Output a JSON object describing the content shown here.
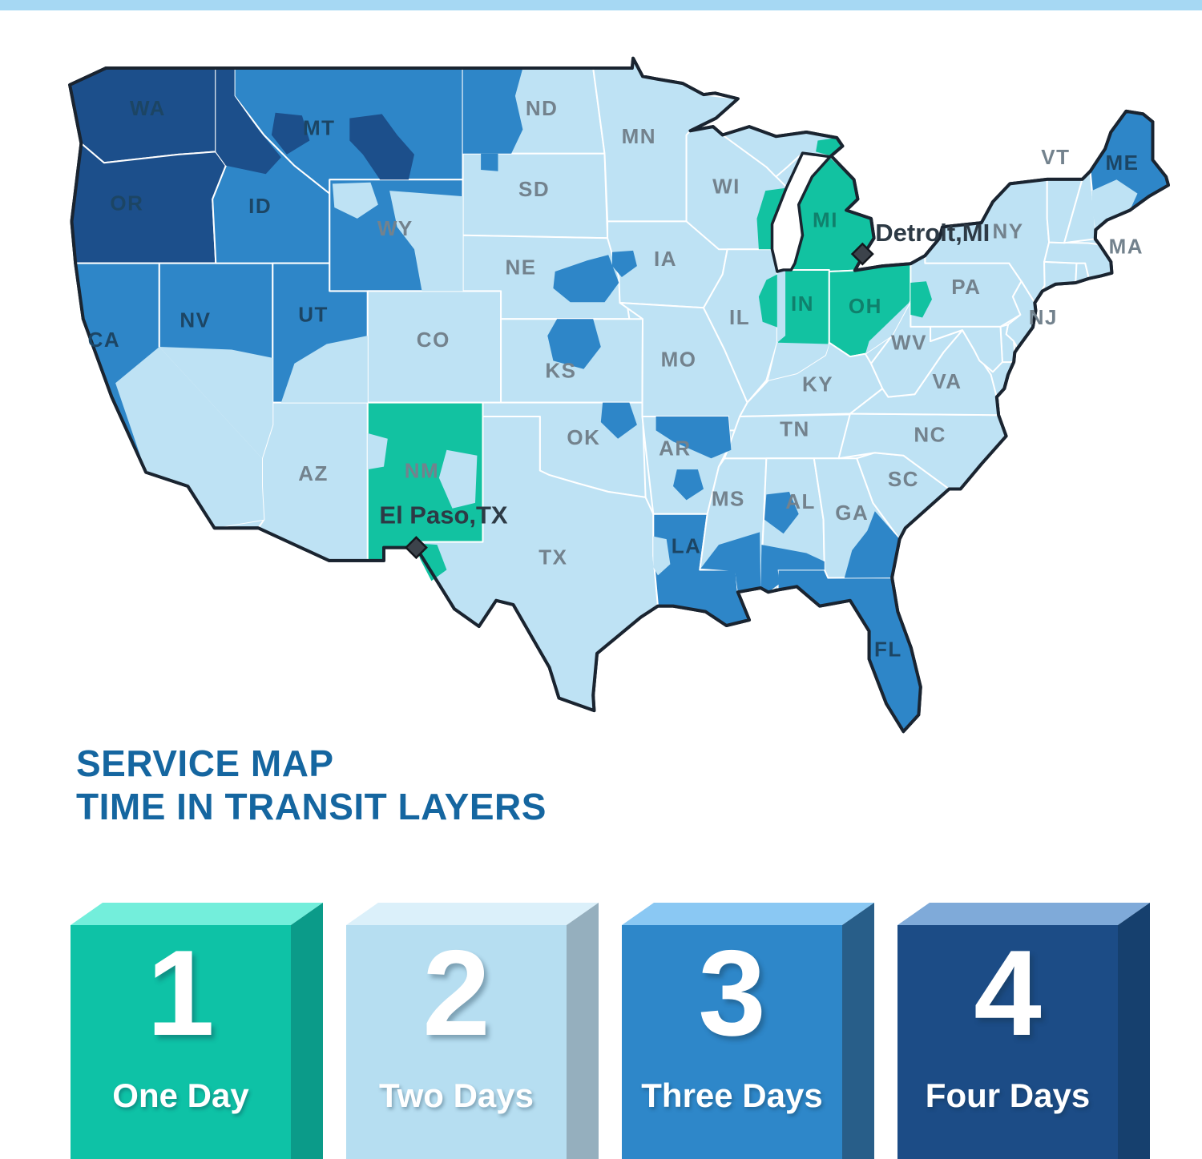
{
  "page": {
    "background": "#FFFFFF",
    "top_bar_color": "#A6D8F3"
  },
  "title": {
    "line1": "SERVICE MAP",
    "line2": "TIME IN TRANSIT LAYERS",
    "color": "#1566A0"
  },
  "map": {
    "colors": {
      "day1": "#12C2A1",
      "day2": "#BEE2F4",
      "day3": "#2E86C8",
      "day4": "#1C4F8B",
      "outline": "#1A2430",
      "state_border": "#FFFFFF",
      "water": "#FFFFFF",
      "label_gray": "#73828D",
      "label_dark": "#1C4564",
      "label_teal": "#10806C",
      "city_label": "#2D3A45",
      "city_marker": "#3C434B",
      "city_marker_edge": "#14181E"
    },
    "cities": [
      {
        "name": "Detroit,MI"
      },
      {
        "name": "El Paso,TX"
      }
    ],
    "states": [
      {
        "code": "WA",
        "label": "WA",
        "days": 4,
        "label_style": "dark"
      },
      {
        "code": "OR",
        "label": "OR",
        "days": 4,
        "label_style": "dark"
      },
      {
        "code": "CA",
        "label": "CA",
        "days": 3,
        "label_style": "dark"
      },
      {
        "code": "NV",
        "label": "NV",
        "days": 3,
        "label_style": "dark"
      },
      {
        "code": "ID",
        "label": "ID",
        "days": 3,
        "label_style": "dark"
      },
      {
        "code": "UT",
        "label": "UT",
        "days": 3,
        "label_style": "dark"
      },
      {
        "code": "AZ",
        "label": "AZ",
        "days": 2,
        "label_style": "gray"
      },
      {
        "code": "MT",
        "label": "MT",
        "days": 3,
        "label_style": "dark"
      },
      {
        "code": "WY",
        "label": "WY",
        "days": 3,
        "label_style": "gray"
      },
      {
        "code": "CO",
        "label": "CO",
        "days": 2,
        "label_style": "gray"
      },
      {
        "code": "NM",
        "label": "NM",
        "days": 1,
        "label_style": "gray"
      },
      {
        "code": "ND",
        "label": "ND",
        "days": 2,
        "label_style": "gray"
      },
      {
        "code": "SD",
        "label": "SD",
        "days": 2,
        "label_style": "gray"
      },
      {
        "code": "NE",
        "label": "NE",
        "days": 2,
        "label_style": "gray"
      },
      {
        "code": "KS",
        "label": "KS",
        "days": 2,
        "label_style": "gray"
      },
      {
        "code": "OK",
        "label": "OK",
        "days": 2,
        "label_style": "gray"
      },
      {
        "code": "TX",
        "label": "TX",
        "days": 2,
        "label_style": "gray"
      },
      {
        "code": "MN",
        "label": "MN",
        "days": 2,
        "label_style": "gray"
      },
      {
        "code": "IA",
        "label": "IA",
        "days": 2,
        "label_style": "gray"
      },
      {
        "code": "MO",
        "label": "MO",
        "days": 2,
        "label_style": "gray"
      },
      {
        "code": "AR",
        "label": "AR",
        "days": 2,
        "label_style": "gray"
      },
      {
        "code": "LA",
        "label": "LA",
        "days": 3,
        "label_style": "dark"
      },
      {
        "code": "WI",
        "label": "WI",
        "days": 2,
        "label_style": "gray"
      },
      {
        "code": "IL",
        "label": "IL",
        "days": 2,
        "label_style": "gray"
      },
      {
        "code": "MS",
        "label": "MS",
        "days": 2,
        "label_style": "gray"
      },
      {
        "code": "MIUP",
        "label": "",
        "days": 2,
        "label_style": "gray"
      },
      {
        "code": "MI",
        "label": "MI",
        "days": 1,
        "label_style": "teal"
      },
      {
        "code": "IN",
        "label": "IN",
        "days": 1,
        "label_style": "teal"
      },
      {
        "code": "OH",
        "label": "OH",
        "days": 1,
        "label_style": "teal"
      },
      {
        "code": "KY",
        "label": "KY",
        "days": 2,
        "label_style": "gray"
      },
      {
        "code": "TN",
        "label": "TN",
        "days": 2,
        "label_style": "gray"
      },
      {
        "code": "AL",
        "label": "AL",
        "days": 2,
        "label_style": "gray"
      },
      {
        "code": "GA",
        "label": "GA",
        "days": 2,
        "label_style": "gray"
      },
      {
        "code": "FL",
        "label": "FL",
        "days": 3,
        "label_style": "dark"
      },
      {
        "code": "SC",
        "label": "SC",
        "days": 2,
        "label_style": "gray"
      },
      {
        "code": "NC",
        "label": "NC",
        "days": 2,
        "label_style": "gray"
      },
      {
        "code": "VA",
        "label": "VA",
        "days": 2,
        "label_style": "gray"
      },
      {
        "code": "WV",
        "label": "WV",
        "days": 2,
        "label_style": "gray"
      },
      {
        "code": "PA",
        "label": "PA",
        "days": 2,
        "label_style": "gray"
      },
      {
        "code": "NY",
        "label": "NY",
        "days": 2,
        "label_style": "gray"
      },
      {
        "code": "NJ",
        "label": "NJ",
        "days": 2,
        "label_style": "gray"
      },
      {
        "code": "DE",
        "label": "",
        "days": 2,
        "label_style": "gray"
      },
      {
        "code": "MD",
        "label": "",
        "days": 2,
        "label_style": "gray"
      },
      {
        "code": "CT",
        "label": "",
        "days": 2,
        "label_style": "gray"
      },
      {
        "code": "RI",
        "label": "",
        "days": 2,
        "label_style": "gray"
      },
      {
        "code": "MA",
        "label": "MA",
        "days": 2,
        "label_style": "gray"
      },
      {
        "code": "VT",
        "label": "VT",
        "days": 2,
        "label_style": "gray"
      },
      {
        "code": "NH",
        "label": "",
        "days": 2,
        "label_style": "gray"
      },
      {
        "code": "ME",
        "label": "ME",
        "days": 3,
        "label_style": "dark"
      }
    ],
    "patches": [
      {
        "id": "id-panhandle",
        "days": 4
      },
      {
        "id": "mt-west",
        "days": 4
      },
      {
        "id": "mt-east",
        "days": 4
      },
      {
        "id": "wy-nw",
        "days": 2
      },
      {
        "id": "wy-east",
        "days": 2
      },
      {
        "id": "ca-south",
        "days": 2
      },
      {
        "id": "nv-south",
        "days": 2
      },
      {
        "id": "ut-se",
        "days": 2
      },
      {
        "id": "nd-west",
        "days": 3
      },
      {
        "id": "sd-nw",
        "days": 3
      },
      {
        "id": "ne-east",
        "days": 3
      },
      {
        "id": "ia-west",
        "days": 3
      },
      {
        "id": "ks-north",
        "days": 3
      },
      {
        "id": "ok-ne",
        "days": 3
      },
      {
        "id": "ar-north",
        "days": 3
      },
      {
        "id": "ar-central",
        "days": 3
      },
      {
        "id": "la-west",
        "days": 2
      },
      {
        "id": "ms-south",
        "days": 3
      },
      {
        "id": "al-south",
        "days": 3
      },
      {
        "id": "al-central",
        "days": 3
      },
      {
        "id": "ga-se",
        "days": 3
      },
      {
        "id": "me-south",
        "days": 2
      },
      {
        "id": "wi-east",
        "days": 1
      },
      {
        "id": "il-east",
        "days": 1
      },
      {
        "id": "in-west",
        "days": 2
      },
      {
        "id": "in-south",
        "days": 2
      },
      {
        "id": "oh-se",
        "days": 2
      },
      {
        "id": "pa-west",
        "days": 1
      },
      {
        "id": "miup-east",
        "days": 1
      },
      {
        "id": "nm-east",
        "days": 2
      },
      {
        "id": "nm-west",
        "days": 2
      },
      {
        "id": "tx-elpaso",
        "days": 1
      }
    ]
  },
  "legend": {
    "items": [
      {
        "number": "1",
        "label": "One Day",
        "front": "#0EC2A6",
        "top": "#73EEDB",
        "side": "#0B9B89"
      },
      {
        "number": "2",
        "label": "Two Days",
        "front": "#B6DEF1",
        "top": "#DBF0FA",
        "side": "#95AFBE"
      },
      {
        "number": "3",
        "label": "Three Days",
        "front": "#2E87C9",
        "top": "#8AC8F3",
        "side": "#285E89"
      },
      {
        "number": "4",
        "label": "Four Days",
        "front": "#1C4C86",
        "top": "#7FAAD9",
        "side": "#16406E"
      }
    ]
  }
}
